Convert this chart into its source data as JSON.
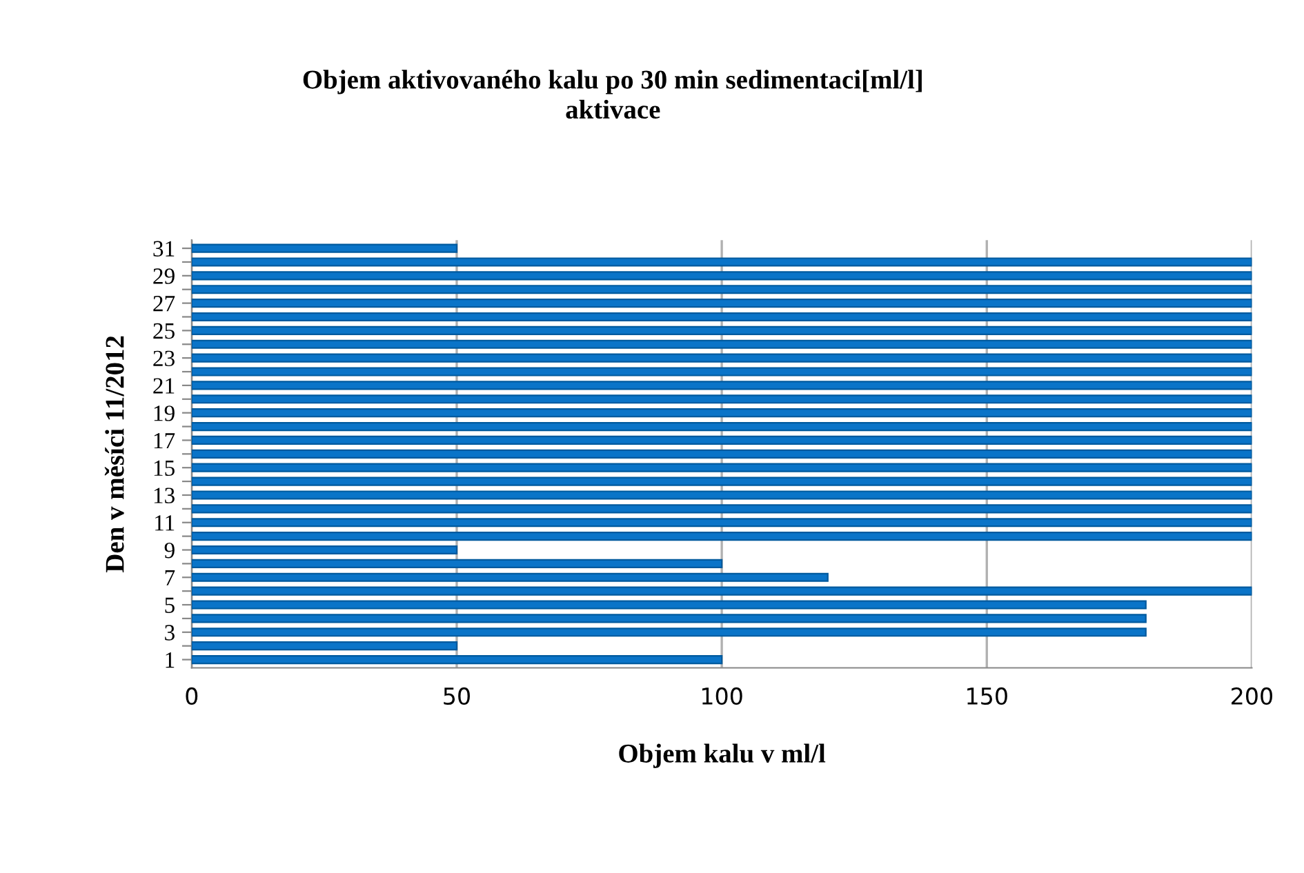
{
  "chart_data": {
    "type": "bar",
    "orientation": "horizontal",
    "title": "Objem aktivovaného kalu po 30 min sedimentaci[ml/l]\naktivace",
    "xlabel": "Objem kalu v ml/l",
    "ylabel": "Den v měsíci 11/2012",
    "categories": [
      "31",
      null,
      "29",
      null,
      "27",
      null,
      "25",
      null,
      "23",
      null,
      "21",
      null,
      "19",
      null,
      "17",
      null,
      "15",
      null,
      "13",
      null,
      "11",
      null,
      "9",
      null,
      "7",
      null,
      "5",
      null,
      "3",
      null,
      "1"
    ],
    "values": [
      50,
      200,
      200,
      200,
      200,
      200,
      200,
      200,
      200,
      200,
      200,
      200,
      200,
      200,
      200,
      200,
      200,
      200,
      200,
      200,
      200,
      200,
      50,
      100,
      120,
      200,
      180,
      180,
      180,
      50,
      100
    ],
    "color": "#0a74c8",
    "xlim": [
      0,
      200
    ],
    "xticks": [
      0,
      50,
      100,
      150,
      200
    ],
    "grid": "x",
    "legend": false
  }
}
